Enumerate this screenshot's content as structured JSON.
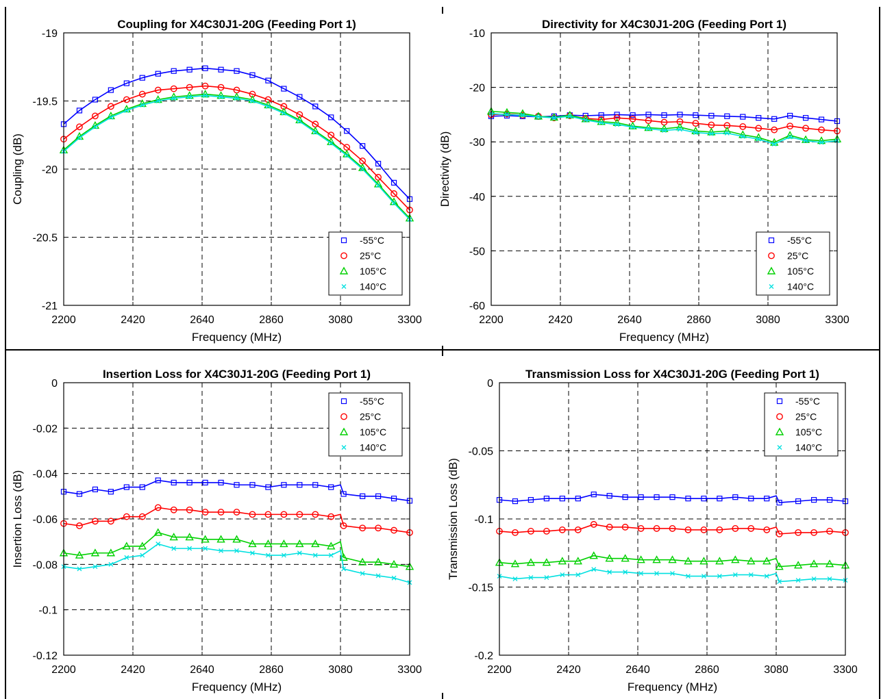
{
  "chart_data": [
    {
      "type": "line",
      "title": "Coupling for X4C30J1-20G (Feeding Port 1)",
      "xlabel": "Frequency (MHz)",
      "ylabel": "Coupling (dB)",
      "xlim": [
        2200,
        3300
      ],
      "ylim": [
        -21,
        -19
      ],
      "xticks": [
        2200,
        2420,
        2640,
        2860,
        3080,
        3300
      ],
      "xtick_labels": [
        "2200",
        "2420",
        "2640",
        "2860",
        "3080",
        "3300"
      ],
      "yticks": [
        -21,
        -20.5,
        -20,
        -19.5,
        -19
      ],
      "ytick_labels": [
        "-21",
        "-20.5",
        "-20",
        "-19.5",
        "-19"
      ],
      "grid": true,
      "legend_position": "bottom-right",
      "x": [
        2200,
        2250,
        2300,
        2350,
        2400,
        2450,
        2500,
        2550,
        2600,
        2650,
        2700,
        2750,
        2800,
        2850,
        2900,
        2950,
        3000,
        3050,
        3100,
        3150,
        3200,
        3250,
        3300
      ],
      "series": [
        {
          "name": "-55°C",
          "color": "#0000ff",
          "marker": "square",
          "values": [
            -19.67,
            -19.57,
            -19.49,
            -19.42,
            -19.37,
            -19.33,
            -19.3,
            -19.28,
            -19.27,
            -19.26,
            -19.27,
            -19.28,
            -19.31,
            -19.35,
            -19.41,
            -19.47,
            -19.54,
            -19.62,
            -19.72,
            -19.83,
            -19.96,
            -20.1,
            -20.22
          ]
        },
        {
          "name": "25°C",
          "color": "#ff0000",
          "marker": "circle",
          "values": [
            -19.78,
            -19.69,
            -19.61,
            -19.54,
            -19.49,
            -19.45,
            -19.42,
            -19.41,
            -19.4,
            -19.39,
            -19.4,
            -19.42,
            -19.45,
            -19.49,
            -19.54,
            -19.6,
            -19.67,
            -19.75,
            -19.84,
            -19.94,
            -20.06,
            -20.18,
            -20.3
          ]
        },
        {
          "name": "105°C",
          "color": "#00d000",
          "marker": "triangle",
          "values": [
            -19.86,
            -19.76,
            -19.68,
            -19.61,
            -19.56,
            -19.52,
            -19.49,
            -19.47,
            -19.46,
            -19.45,
            -19.46,
            -19.47,
            -19.49,
            -19.53,
            -19.58,
            -19.64,
            -19.72,
            -19.8,
            -19.89,
            -19.99,
            -20.11,
            -20.24,
            -20.36
          ]
        },
        {
          "name": "140°C",
          "color": "#00e0e0",
          "marker": "x",
          "values": [
            -19.87,
            -19.77,
            -19.69,
            -19.62,
            -19.57,
            -19.53,
            -19.5,
            -19.48,
            -19.47,
            -19.46,
            -19.47,
            -19.48,
            -19.5,
            -19.54,
            -19.59,
            -19.65,
            -19.73,
            -19.81,
            -19.9,
            -20.0,
            -20.12,
            -20.25,
            -20.37
          ]
        }
      ]
    },
    {
      "type": "line",
      "title": "Directivity for X4C30J1-20G (Feeding Port 1)",
      "xlabel": "Frequency (MHz)",
      "ylabel": "Directivity (dB)",
      "xlim": [
        2200,
        3300
      ],
      "ylim": [
        -60,
        -10
      ],
      "xticks": [
        2200,
        2420,
        2640,
        2860,
        3080,
        3300
      ],
      "xtick_labels": [
        "2200",
        "2420",
        "2640",
        "2860",
        "3080",
        "3300"
      ],
      "yticks": [
        -60,
        -50,
        -40,
        -30,
        -20,
        -10
      ],
      "ytick_labels": [
        "-60",
        "-50",
        "-40",
        "-30",
        "-20",
        "-10"
      ],
      "grid": true,
      "legend_position": "bottom-right",
      "x": [
        2200,
        2250,
        2300,
        2350,
        2400,
        2450,
        2500,
        2550,
        2600,
        2650,
        2700,
        2750,
        2800,
        2850,
        2900,
        2950,
        3000,
        3050,
        3100,
        3150,
        3200,
        3250,
        3300
      ],
      "series": [
        {
          "name": "-55°C",
          "color": "#0000ff",
          "marker": "square",
          "values": [
            -25.3,
            -25.2,
            -25.3,
            -25.4,
            -25.3,
            -25.1,
            -25.2,
            -25.1,
            -25.0,
            -25.1,
            -25.0,
            -25.1,
            -25.0,
            -25.1,
            -25.2,
            -25.3,
            -25.4,
            -25.6,
            -25.8,
            -25.2,
            -25.6,
            -25.9,
            -26.2
          ]
        },
        {
          "name": "25°C",
          "color": "#ff0000",
          "marker": "circle",
          "values": [
            -25.0,
            -24.9,
            -25.1,
            -25.3,
            -25.6,
            -25.2,
            -25.7,
            -25.9,
            -25.6,
            -25.8,
            -26.1,
            -26.4,
            -26.3,
            -26.6,
            -26.9,
            -27.0,
            -27.2,
            -27.5,
            -27.8,
            -27.1,
            -27.5,
            -27.8,
            -28.0
          ]
        },
        {
          "name": "105°C",
          "color": "#00d000",
          "marker": "triangle",
          "values": [
            -24.4,
            -24.6,
            -24.8,
            -25.3,
            -25.5,
            -25.1,
            -25.8,
            -26.3,
            -26.5,
            -27.1,
            -27.4,
            -27.6,
            -27.3,
            -28.0,
            -28.2,
            -28.0,
            -28.7,
            -29.2,
            -30.1,
            -28.8,
            -29.6,
            -29.8,
            -29.5
          ]
        },
        {
          "name": "140°C",
          "color": "#00e0e0",
          "marker": "x",
          "values": [
            -24.8,
            -25.0,
            -25.1,
            -25.4,
            -25.6,
            -25.3,
            -26.0,
            -26.5,
            -26.8,
            -27.3,
            -27.6,
            -27.9,
            -27.7,
            -28.3,
            -28.5,
            -28.4,
            -29.0,
            -29.5,
            -30.4,
            -29.1,
            -29.8,
            -30.1,
            -29.8
          ]
        }
      ]
    },
    {
      "type": "line",
      "title": "Insertion Loss for X4C30J1-20G (Feeding Port 1)",
      "xlabel": "Frequency (MHz)",
      "ylabel": "Insertion Loss (dB)",
      "xlim": [
        2200,
        3300
      ],
      "ylim": [
        -0.12,
        0
      ],
      "xticks": [
        2200,
        2420,
        2640,
        2860,
        3080,
        3300
      ],
      "xtick_labels": [
        "2200",
        "2420",
        "2640",
        "2860",
        "3080",
        "3300"
      ],
      "yticks": [
        -0.12,
        -0.1,
        -0.08,
        -0.06,
        -0.04,
        -0.02,
        0
      ],
      "ytick_labels": [
        "-0.12",
        "-0.1",
        "-0.08",
        "-0.06",
        "-0.04",
        "-0.02",
        "0"
      ],
      "grid": true,
      "legend_position": "top-right",
      "x": [
        2200,
        2250,
        2300,
        2350,
        2400,
        2450,
        2500,
        2550,
        2600,
        2650,
        2700,
        2750,
        2800,
        2850,
        2900,
        2950,
        3000,
        3050,
        3080,
        3090,
        3150,
        3200,
        3250,
        3300
      ],
      "series": [
        {
          "name": "-55°C",
          "color": "#0000ff",
          "marker": "square",
          "values": [
            -0.048,
            -0.049,
            -0.047,
            -0.048,
            -0.046,
            -0.046,
            -0.043,
            -0.044,
            -0.044,
            -0.044,
            -0.044,
            -0.045,
            -0.045,
            -0.046,
            -0.045,
            -0.045,
            -0.045,
            -0.046,
            -0.045,
            -0.049,
            -0.05,
            -0.05,
            -0.051,
            -0.052
          ]
        },
        {
          "name": "25°C",
          "color": "#ff0000",
          "marker": "circle",
          "values": [
            -0.062,
            -0.063,
            -0.061,
            -0.061,
            -0.059,
            -0.059,
            -0.055,
            -0.056,
            -0.056,
            -0.057,
            -0.057,
            -0.057,
            -0.058,
            -0.058,
            -0.058,
            -0.058,
            -0.058,
            -0.059,
            -0.058,
            -0.063,
            -0.064,
            -0.064,
            -0.065,
            -0.066
          ]
        },
        {
          "name": "105°C",
          "color": "#00d000",
          "marker": "triangle",
          "values": [
            -0.075,
            -0.076,
            -0.075,
            -0.075,
            -0.072,
            -0.072,
            -0.066,
            -0.068,
            -0.068,
            -0.069,
            -0.069,
            -0.069,
            -0.071,
            -0.071,
            -0.071,
            -0.071,
            -0.071,
            -0.072,
            -0.07,
            -0.077,
            -0.079,
            -0.079,
            -0.08,
            -0.081
          ]
        },
        {
          "name": "140°C",
          "color": "#00e0e0",
          "marker": "x",
          "values": [
            -0.081,
            -0.082,
            -0.081,
            -0.08,
            -0.077,
            -0.076,
            -0.071,
            -0.073,
            -0.073,
            -0.073,
            -0.074,
            -0.074,
            -0.075,
            -0.076,
            -0.076,
            -0.075,
            -0.076,
            -0.076,
            -0.074,
            -0.082,
            -0.084,
            -0.085,
            -0.086,
            -0.088
          ]
        }
      ]
    },
    {
      "type": "line",
      "title": "Transmission Loss for X4C30J1-20G (Feeding Port 1)",
      "xlabel": "Frequency (MHz)",
      "ylabel": "Transmission Loss (dB)",
      "xlim": [
        2200,
        3300
      ],
      "ylim": [
        -0.2,
        0
      ],
      "xticks": [
        2200,
        2420,
        2640,
        2860,
        3080,
        3300
      ],
      "xtick_labels": [
        "2200",
        "2420",
        "2640",
        "2860",
        "3080",
        "3300"
      ],
      "yticks": [
        -0.2,
        -0.15,
        -0.1,
        -0.05,
        0
      ],
      "ytick_labels": [
        "-0.2",
        "-0.15",
        "-0.1",
        "-0.05",
        "0"
      ],
      "grid": true,
      "legend_position": "top-right",
      "x": [
        2200,
        2250,
        2300,
        2350,
        2400,
        2450,
        2500,
        2550,
        2600,
        2650,
        2700,
        2750,
        2800,
        2850,
        2900,
        2950,
        3000,
        3050,
        3080,
        3090,
        3150,
        3200,
        3250,
        3300
      ],
      "series": [
        {
          "name": "-55°C",
          "color": "#0000ff",
          "marker": "square",
          "values": [
            -0.086,
            -0.087,
            -0.086,
            -0.085,
            -0.085,
            -0.085,
            -0.082,
            -0.083,
            -0.084,
            -0.084,
            -0.084,
            -0.084,
            -0.085,
            -0.085,
            -0.085,
            -0.084,
            -0.085,
            -0.085,
            -0.083,
            -0.088,
            -0.087,
            -0.086,
            -0.086,
            -0.087
          ]
        },
        {
          "name": "25°C",
          "color": "#ff0000",
          "marker": "circle",
          "values": [
            -0.109,
            -0.11,
            -0.109,
            -0.109,
            -0.108,
            -0.108,
            -0.104,
            -0.106,
            -0.106,
            -0.107,
            -0.107,
            -0.107,
            -0.108,
            -0.108,
            -0.108,
            -0.107,
            -0.107,
            -0.108,
            -0.106,
            -0.111,
            -0.11,
            -0.11,
            -0.109,
            -0.11
          ]
        },
        {
          "name": "105°C",
          "color": "#00d000",
          "marker": "triangle",
          "values": [
            -0.132,
            -0.133,
            -0.132,
            -0.132,
            -0.131,
            -0.131,
            -0.127,
            -0.129,
            -0.129,
            -0.13,
            -0.13,
            -0.13,
            -0.131,
            -0.131,
            -0.131,
            -0.13,
            -0.131,
            -0.131,
            -0.129,
            -0.135,
            -0.134,
            -0.133,
            -0.133,
            -0.134
          ]
        },
        {
          "name": "140°C",
          "color": "#00e0e0",
          "marker": "x",
          "values": [
            -0.142,
            -0.144,
            -0.143,
            -0.143,
            -0.141,
            -0.141,
            -0.137,
            -0.139,
            -0.139,
            -0.14,
            -0.14,
            -0.14,
            -0.142,
            -0.142,
            -0.142,
            -0.141,
            -0.141,
            -0.142,
            -0.14,
            -0.146,
            -0.145,
            -0.144,
            -0.144,
            -0.145
          ]
        }
      ]
    }
  ]
}
